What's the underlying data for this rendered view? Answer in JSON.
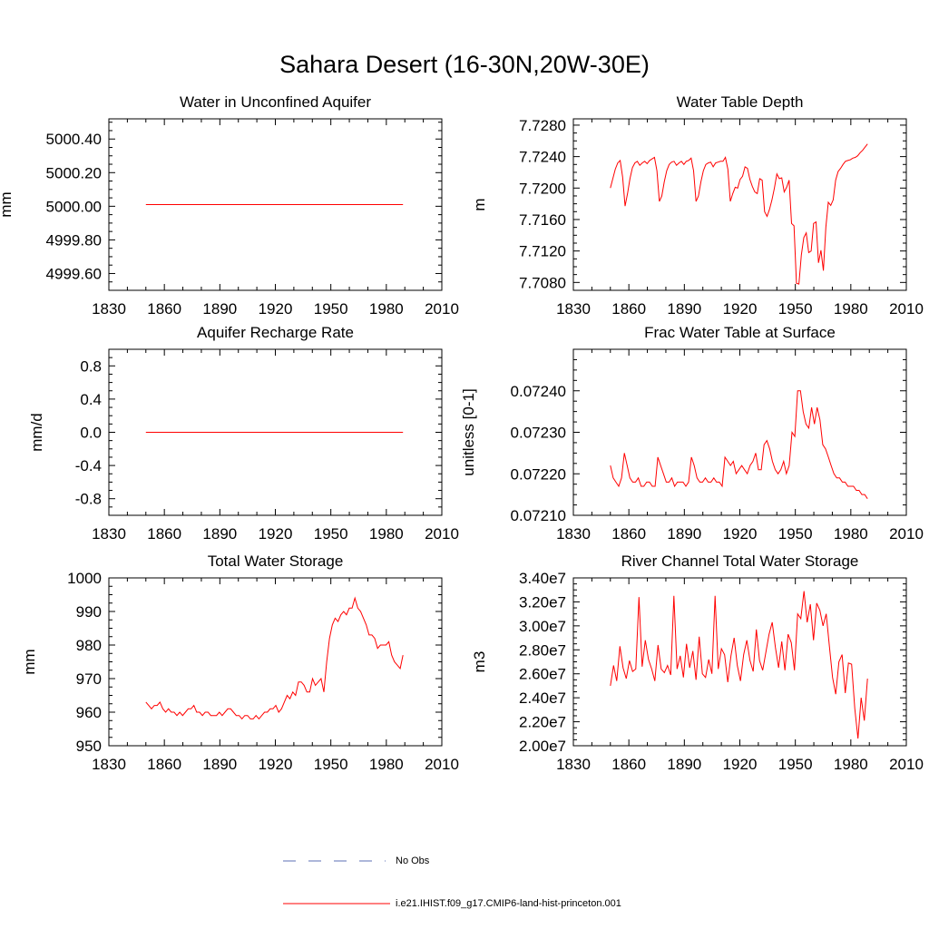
{
  "title": "Sahara Desert (16-30N,20W-30E)",
  "legend": {
    "obs_label": "No Obs",
    "obs_color": "#5b6fb5",
    "model_label": "i.e21.IHIST.f09_g17.CMIP6-land-hist-princeton.001",
    "model_color": "#ff0000"
  },
  "chart_data": [
    {
      "type": "line",
      "title": "Water in Unconfined Aquifer",
      "ylabel": "mm",
      "xlim": [
        1830,
        2010
      ],
      "ylim": [
        4999.5,
        5000.52
      ],
      "xticks": [
        1830,
        1860,
        1890,
        1920,
        1950,
        1980,
        2010
      ],
      "yticks": [
        4999.6,
        4999.8,
        5000.0,
        5000.2,
        5000.4
      ],
      "ytick_labels": [
        "4999.60",
        "4999.80",
        "5000.00",
        "5000.20",
        "5000.40"
      ],
      "series": [
        {
          "x_start": 1850,
          "x_end": 1989,
          "values": [
            5000.01,
            5000.01
          ]
        }
      ]
    },
    {
      "type": "line",
      "title": "Water Table Depth",
      "ylabel": "m",
      "xlim": [
        1830,
        2010
      ],
      "ylim": [
        7.707,
        7.7288
      ],
      "xticks": [
        1830,
        1860,
        1890,
        1920,
        1950,
        1980,
        2010
      ],
      "yticks": [
        7.708,
        7.712,
        7.716,
        7.72,
        7.724,
        7.728
      ],
      "ytick_labels": [
        "7.7080",
        "7.7120",
        "7.7160",
        "7.7200",
        "7.7240",
        "7.7280"
      ],
      "series": [
        {
          "x_start": 1850,
          "x_end": 1989,
          "values": [
            7.72,
            7.7212,
            7.7224,
            7.7232,
            7.7235,
            7.7214,
            7.7177,
            7.7193,
            7.7212,
            7.7226,
            7.7232,
            7.7234,
            7.7229,
            7.7232,
            7.7234,
            7.7231,
            7.7235,
            7.7237,
            7.7239,
            7.7222,
            7.7183,
            7.719,
            7.7208,
            7.7222,
            7.723,
            7.7233,
            7.7234,
            7.7229,
            7.7232,
            7.7234,
            7.723,
            7.7234,
            7.7235,
            7.7238,
            7.7222,
            7.7183,
            7.719,
            7.7208,
            7.7222,
            7.723,
            7.7232,
            7.7233,
            7.7227,
            7.7232,
            7.7233,
            7.7234,
            7.7234,
            7.7239,
            7.7224,
            7.7183,
            7.7193,
            7.7201,
            7.72,
            7.7211,
            7.7215,
            7.7227,
            7.7225,
            7.7211,
            7.7202,
            7.7195,
            7.7193,
            7.7212,
            7.721,
            7.717,
            7.7164,
            7.7173,
            7.7185,
            7.72,
            7.7218,
            7.7212,
            7.7213,
            7.7195,
            7.7201,
            7.721,
            7.7155,
            7.7152,
            7.7079,
            7.7078,
            7.7115,
            7.7137,
            7.7143,
            7.7118,
            7.712,
            7.7155,
            7.7157,
            7.7105,
            7.7121,
            7.7095,
            7.715,
            7.7182,
            7.7178,
            7.7185,
            7.721,
            7.7221,
            7.7225,
            7.723,
            7.7234,
            7.7235,
            7.7236,
            7.7238,
            7.7239,
            7.7241,
            7.7245,
            7.7248,
            7.7252,
            7.7256
          ]
        }
      ]
    },
    {
      "type": "line",
      "title": "Aquifer Recharge Rate",
      "ylabel": "mm/d",
      "xlim": [
        1830,
        2010
      ],
      "ylim": [
        -1.0,
        1.0
      ],
      "xticks": [
        1830,
        1860,
        1890,
        1920,
        1950,
        1980,
        2010
      ],
      "yticks": [
        -0.8,
        -0.4,
        0.0,
        0.4,
        0.8
      ],
      "ytick_labels": [
        "-0.8",
        "-0.4",
        "0.0",
        "0.4",
        "0.8"
      ],
      "series": [
        {
          "x_start": 1850,
          "x_end": 1989,
          "values": [
            0.0,
            0.0
          ]
        }
      ]
    },
    {
      "type": "line",
      "title": "Frac Water Table at Surface",
      "ylabel": "unitless [0-1]",
      "xlim": [
        1830,
        2010
      ],
      "ylim": [
        0.0721,
        0.0725
      ],
      "xticks": [
        1830,
        1860,
        1890,
        1920,
        1950,
        1980,
        2010
      ],
      "yticks": [
        0.0721,
        0.0722,
        0.0723,
        0.0724
      ],
      "ytick_labels": [
        "0.07210",
        "0.07220",
        "0.07230",
        "0.07240"
      ],
      "series": [
        {
          "x_start": 1850,
          "x_end": 1989,
          "values": [
            0.07222,
            0.07219,
            0.07218,
            0.07217,
            0.07219,
            0.07225,
            0.07222,
            0.07219,
            0.07218,
            0.07218,
            0.07219,
            0.07217,
            0.07217,
            0.07218,
            0.07218,
            0.07217,
            0.07217,
            0.07224,
            0.07222,
            0.0722,
            0.07218,
            0.07218,
            0.07219,
            0.07217,
            0.07218,
            0.07218,
            0.07218,
            0.07217,
            0.07218,
            0.07224,
            0.07222,
            0.07219,
            0.07218,
            0.07218,
            0.07219,
            0.07218,
            0.07218,
            0.07219,
            0.07218,
            0.07218,
            0.07217,
            0.07224,
            0.07223,
            0.07222,
            0.07223,
            0.0722,
            0.07221,
            0.07222,
            0.07221,
            0.0722,
            0.07222,
            0.07223,
            0.07225,
            0.07221,
            0.07221,
            0.07227,
            0.07228,
            0.07226,
            0.07223,
            0.07221,
            0.0722,
            0.07221,
            0.07223,
            0.0722,
            0.07222,
            0.0723,
            0.07229,
            0.0724,
            0.0724,
            0.07235,
            0.07232,
            0.07231,
            0.07236,
            0.07232,
            0.07236,
            0.07233,
            0.07227,
            0.07226,
            0.07224,
            0.07222,
            0.0722,
            0.07219,
            0.07219,
            0.07218,
            0.07218,
            0.07217,
            0.07217,
            0.07217,
            0.07216,
            0.07216,
            0.07215,
            0.07215,
            0.07214
          ]
        }
      ]
    },
    {
      "type": "line",
      "title": "Total Water Storage",
      "ylabel": "mm",
      "xlim": [
        1830,
        2010
      ],
      "ylim": [
        950,
        1000
      ],
      "xticks": [
        1830,
        1860,
        1890,
        1920,
        1950,
        1980,
        2010
      ],
      "yticks": [
        950,
        960,
        970,
        980,
        990,
        1000
      ],
      "ytick_labels": [
        "950",
        "960",
        "970",
        "980",
        "990",
        "1000"
      ],
      "series": [
        {
          "x_start": 1850,
          "x_end": 1989,
          "values": [
            963,
            962,
            961,
            962,
            962,
            963,
            961,
            960,
            961,
            960,
            960,
            959,
            960,
            959,
            960,
            961,
            961,
            962,
            960,
            960,
            959,
            960,
            960,
            959,
            959,
            959,
            960,
            959,
            960,
            961,
            961,
            960,
            959,
            959,
            958,
            959,
            959,
            958,
            958,
            959,
            958,
            959,
            960,
            960,
            961,
            961,
            962,
            960,
            961,
            963,
            965,
            964,
            966,
            965,
            969,
            969,
            968,
            966,
            966,
            970,
            968,
            969,
            970,
            966,
            975,
            982,
            986,
            988,
            987,
            989,
            990,
            989,
            991,
            991,
            994,
            991,
            990,
            988,
            986,
            983,
            983,
            982,
            979,
            980,
            980,
            980,
            981,
            977,
            975,
            974,
            973,
            977
          ]
        }
      ]
    },
    {
      "type": "line",
      "title": "River Channel Total Water Storage",
      "ylabel": "m3",
      "xlim": [
        1830,
        2010
      ],
      "ylim": [
        20000000,
        34000000
      ],
      "xticks": [
        1830,
        1860,
        1890,
        1920,
        1950,
        1980,
        2010
      ],
      "yticks": [
        20000000,
        22000000,
        24000000,
        26000000,
        28000000,
        30000000,
        32000000,
        34000000
      ],
      "ytick_labels": [
        "2.00e7",
        "2.20e7",
        "2.40e7",
        "2.60e7",
        "2.80e7",
        "3.00e7",
        "3.20e7",
        "3.40e7"
      ],
      "series": [
        {
          "x_start": 1850,
          "x_end": 1989,
          "values": [
            25000000,
            26700000,
            25400000,
            28300000,
            26500000,
            25600000,
            27100000,
            26200000,
            26400000,
            32400000,
            26600000,
            28800000,
            27200000,
            26400000,
            25400000,
            28400000,
            26400000,
            26100000,
            26700000,
            25900000,
            32500000,
            26400000,
            27500000,
            25700000,
            28500000,
            26500000,
            27900000,
            25500000,
            29100000,
            26000000,
            25700000,
            27200000,
            26000000,
            32500000,
            26400000,
            28100000,
            27600000,
            25300000,
            27500000,
            29000000,
            26700000,
            25400000,
            27600000,
            28800000,
            27100000,
            26200000,
            29700000,
            27100000,
            26300000,
            27800000,
            29300000,
            30300000,
            28200000,
            26500000,
            28700000,
            26300000,
            29300000,
            28600000,
            26300000,
            31000000,
            30600000,
            32900000,
            30300000,
            31800000,
            28800000,
            31900000,
            31300000,
            30000000,
            31000000,
            28300000,
            25700000,
            24300000,
            27000000,
            27600000,
            24400000,
            26900000,
            26800000,
            23100000,
            20600000,
            24000000,
            22100000,
            25600000
          ]
        }
      ]
    }
  ]
}
